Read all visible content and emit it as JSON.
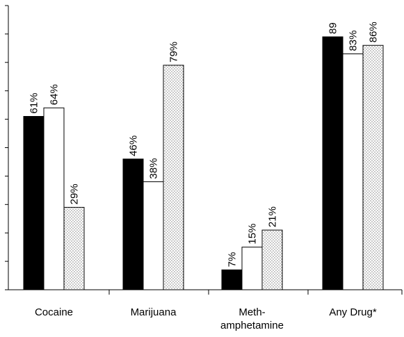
{
  "chart_data": {
    "type": "bar",
    "categories": [
      "Cocaine",
      "Marijuana",
      "Meth-\namphetamine",
      "Any Drug*"
    ],
    "category_lines": [
      [
        "Cocaine"
      ],
      [
        "Marijuana"
      ],
      [
        "Meth-",
        "amphetamine"
      ],
      [
        "Any Drug*"
      ]
    ],
    "ylim": [
      0,
      100
    ],
    "ytick_step": 10,
    "grid": false,
    "title": "",
    "xlabel": "",
    "ylabel": "",
    "series": [
      {
        "values": [
          61,
          46,
          7,
          89
        ],
        "fill": "solid",
        "color": "#000000"
      },
      {
        "values": [
          64,
          38,
          15,
          83
        ],
        "fill": "empty",
        "color": "#ffffff"
      },
      {
        "values": [
          29,
          79,
          21,
          86
        ],
        "fill": "dotted",
        "color": "#d9d9d9"
      }
    ],
    "labels": [
      [
        "61%",
        "64%",
        "29%"
      ],
      [
        "46%",
        "38%",
        "79%"
      ],
      [
        "7%",
        "15%",
        "21%"
      ],
      [
        "89",
        "83%",
        "86%"
      ]
    ]
  }
}
